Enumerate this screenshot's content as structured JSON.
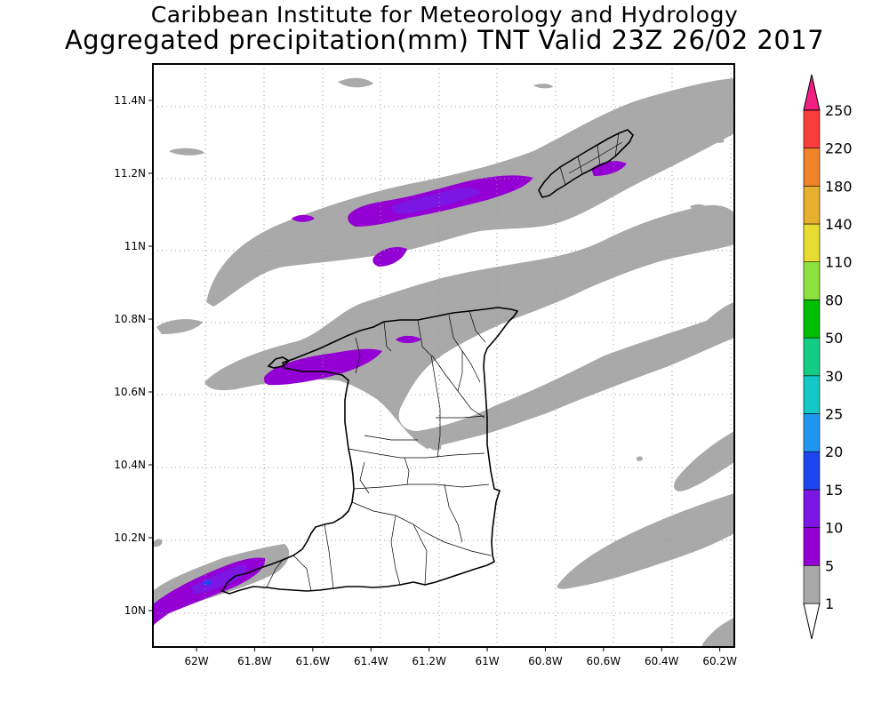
{
  "header": {
    "institute": "Caribbean Institute for Meteorology and Hydrology",
    "product": "Aggregated precipitation(mm) TNT Valid 23Z 26/02 2017"
  },
  "map": {
    "lon_range": [
      -62.15,
      -60.15
    ],
    "lat_range": [
      9.9,
      11.5
    ],
    "x_ticks": [
      {
        "value": -62.0,
        "label": "62W"
      },
      {
        "value": -61.8,
        "label": "61.8W"
      },
      {
        "value": -61.6,
        "label": "61.6W"
      },
      {
        "value": -61.4,
        "label": "61.4W"
      },
      {
        "value": -61.2,
        "label": "61.2W"
      },
      {
        "value": -61.0,
        "label": "61W"
      },
      {
        "value": -60.8,
        "label": "60.8W"
      },
      {
        "value": -60.6,
        "label": "60.6W"
      },
      {
        "value": -60.4,
        "label": "60.4W"
      },
      {
        "value": -60.2,
        "label": "60.2W"
      }
    ],
    "y_ticks": [
      {
        "value": 10.0,
        "label": "10N"
      },
      {
        "value": 10.2,
        "label": "10.2N"
      },
      {
        "value": 10.4,
        "label": "10.4N"
      },
      {
        "value": 10.6,
        "label": "10.6N"
      },
      {
        "value": 10.8,
        "label": "10.8N"
      },
      {
        "value": 11.0,
        "label": "11N"
      },
      {
        "value": 11.2,
        "label": "11.2N"
      },
      {
        "value": 11.4,
        "label": "11.4N"
      }
    ],
    "grid": true
  },
  "colorbar": {
    "levels": [
      {
        "label": "1",
        "color": "#ffffff"
      },
      {
        "label": "5",
        "color": "#a9a9a9"
      },
      {
        "label": "10",
        "color": "#9400d3"
      },
      {
        "label": "15",
        "color": "#7b16e5"
      },
      {
        "label": "20",
        "color": "#1e46f0"
      },
      {
        "label": "25",
        "color": "#1e96f0"
      },
      {
        "label": "30",
        "color": "#14c8c8"
      },
      {
        "label": "50",
        "color": "#14cd82"
      },
      {
        "label": "80",
        "color": "#00be00"
      },
      {
        "label": "110",
        "color": "#8ce13c"
      },
      {
        "label": "140",
        "color": "#e6dc32"
      },
      {
        "label": "180",
        "color": "#e6af2d"
      },
      {
        "label": "220",
        "color": "#f08228"
      },
      {
        "label": "250",
        "color": "#fa3c3c"
      }
    ],
    "top_color": "#f01e82"
  }
}
